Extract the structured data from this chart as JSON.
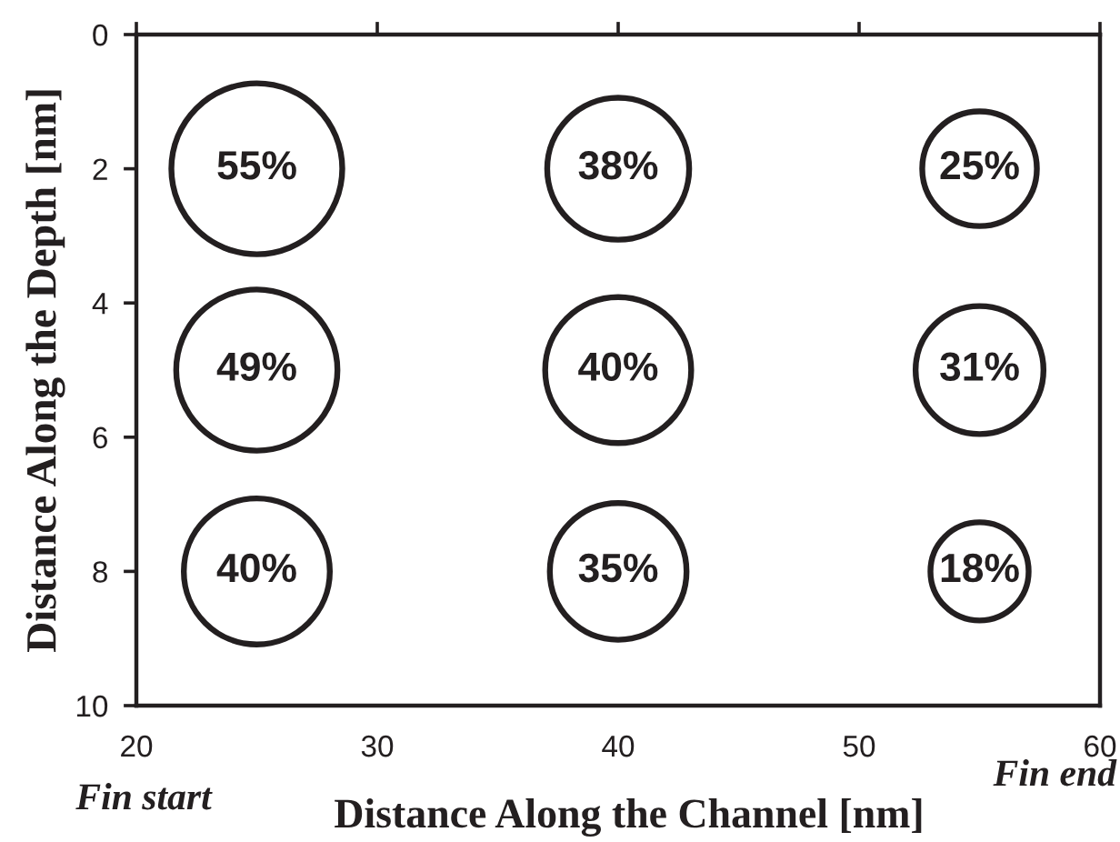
{
  "chart_data": {
    "type": "bubble",
    "xlabel": "Distance Along the Channel [nm]",
    "ylabel": "Distance Along the Depth [nm]",
    "x": [
      25,
      40,
      55,
      25,
      40,
      55,
      25,
      40,
      55
    ],
    "values": [
      2,
      2,
      2,
      5,
      5,
      5,
      8,
      8,
      8
    ],
    "sizes": [
      1,
      0.69,
      0.45,
      0.89,
      0.73,
      0.56,
      0.73,
      0.64,
      0.33
    ],
    "color": "#231f20",
    "marker": "circle",
    "xlim": [
      20,
      60
    ],
    "xticks": [
      20,
      30,
      40,
      50,
      60
    ],
    "ylim": [
      10,
      0
    ],
    "yticks": [
      0,
      2,
      4,
      6,
      8,
      10
    ],
    "annotations": [
      {
        "text": "55%",
        "x": 25,
        "y": 2
      },
      {
        "text": "38%",
        "x": 40,
        "y": 2
      },
      {
        "text": "25%",
        "x": 55,
        "y": 2
      },
      {
        "text": "49%",
        "x": 25,
        "y": 5
      },
      {
        "text": "40%",
        "x": 40,
        "y": 5
      },
      {
        "text": "31%",
        "x": 55,
        "y": 5
      },
      {
        "text": "40%",
        "x": 25,
        "y": 8
      },
      {
        "text": "35%",
        "x": 40,
        "y": 8
      },
      {
        "text": "18%",
        "x": 55,
        "y": 8
      },
      "Fin start",
      "Fin end"
    ]
  }
}
